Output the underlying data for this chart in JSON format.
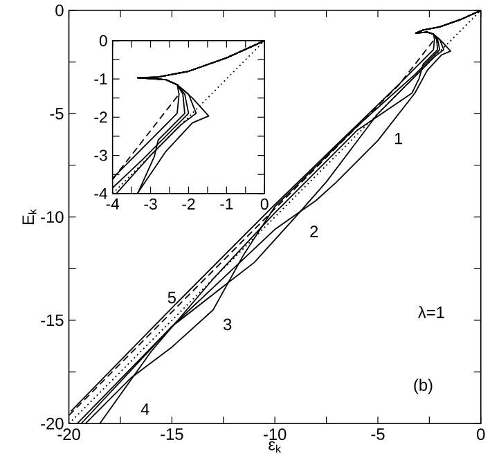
{
  "chart_data": [
    {
      "type": "line",
      "xlabel": "ε$_{k}$",
      "ylabel": "E$_{k}$",
      "xlim": [
        -20,
        0
      ],
      "ylim": [
        -20,
        0
      ],
      "xticks": [
        -20,
        {
          "value": -17.5,
          "label": null
        },
        -15,
        {
          "value": -12.5,
          "label": null
        },
        -10,
        {
          "value": -7.5,
          "label": null
        },
        -5,
        {
          "value": -2.5,
          "label": null
        },
        0
      ],
      "yticks": [
        -20,
        {
          "value": -17.5,
          "label": null
        },
        -15,
        {
          "value": -12.5,
          "label": null
        },
        -10,
        {
          "value": -7.5,
          "label": null
        },
        -5,
        {
          "value": -2.5,
          "label": null
        },
        0
      ],
      "series": [
        {
          "color": "#000000",
          "line_style": "dotted",
          "x": [
            -20,
            0
          ],
          "values": [
            -20,
            0
          ]
        },
        {
          "color": "#000000",
          "line_style": "dashed",
          "x": [
            -20,
            -10,
            -4,
            -2.26
          ],
          "values": [
            -19.6,
            -9.6,
            -3.63,
            -1.41
          ]
        },
        {
          "color": "#000000",
          "line_style": "solid",
          "x": [
            0,
            -1,
            -2,
            -2.8,
            -3.16,
            -2.6,
            -2.3,
            -1.9,
            -1.47,
            -1.9,
            -2.6,
            -3.2,
            -5,
            -7,
            -8,
            -10,
            -15,
            -19.6
          ],
          "values": [
            0,
            -0.45,
            -0.8,
            -0.95,
            -1.1,
            -1.05,
            -1.15,
            -1.5,
            -1.97,
            -2.15,
            -2.9,
            -4,
            -6.3,
            -8.3,
            -9.2,
            -10.6,
            -15.3,
            -20
          ]
        },
        {
          "color": "#000000",
          "line_style": "solid",
          "x": [
            0,
            -1,
            -2,
            -2.8,
            -3.16,
            -2.6,
            -2.3,
            -2,
            -1.8,
            -2.2,
            -3,
            -5,
            -7.5,
            -9,
            -11,
            -12.3,
            -15,
            -19.4
          ],
          "values": [
            0,
            -0.45,
            -0.8,
            -0.95,
            -1.1,
            -1.05,
            -1.15,
            -1.4,
            -1.9,
            -2.2,
            -3,
            -5,
            -8.3,
            -10,
            -12.2,
            -13.2,
            -15.3,
            -20
          ]
        },
        {
          "color": "#000000",
          "line_style": "solid",
          "x": [
            0,
            -1,
            -2,
            -2.8,
            -3.16,
            -2.6,
            -2.3,
            -2.1,
            -2,
            -2.3,
            -3.2,
            -6,
            -10,
            -11.5,
            -13,
            -15,
            -17,
            -19.2
          ],
          "values": [
            0,
            -0.45,
            -0.8,
            -0.95,
            -1.1,
            -1.05,
            -1.15,
            -1.4,
            -1.9,
            -2.2,
            -3.1,
            -5.6,
            -9.5,
            -11.8,
            -14.5,
            -16.3,
            -17.8,
            -20
          ]
        },
        {
          "color": "#000000",
          "line_style": "solid",
          "x": [
            0,
            -1,
            -2,
            -2.8,
            -3.16,
            -2.6,
            -2.3,
            -2.15,
            -2.1,
            -2.4,
            -2.8,
            -3,
            -3.34,
            -6,
            -10,
            -13,
            -16,
            -18.5
          ],
          "values": [
            0,
            -0.45,
            -0.8,
            -0.95,
            -1.1,
            -1.05,
            -1.15,
            -1.4,
            -1.9,
            -2.2,
            -2.6,
            -3.3,
            -4,
            -5.8,
            -9.8,
            -13,
            -16.5,
            -20
          ]
        },
        {
          "color": "#000000",
          "line_style": "solid",
          "x": [
            0,
            -1,
            -2,
            -2.8,
            -3.16,
            -2.6,
            -2.3,
            -2.25,
            -2.3,
            -2.6,
            -4,
            -10,
            -15,
            -19.9
          ],
          "values": [
            0,
            -0.45,
            -0.8,
            -0.95,
            -1.1,
            -1.05,
            -1.15,
            -1.4,
            -1.9,
            -2.2,
            -3.6,
            -9.4,
            -14.4,
            -19.4
          ]
        }
      ],
      "annotations": [
        "1",
        "2",
        "3",
        "4",
        "5",
        "λ=1",
        "(b)"
      ]
    },
    {
      "type": "line",
      "xlim": [
        -4,
        0
      ],
      "ylim": [
        -4,
        0
      ],
      "xticks": [
        -4,
        {
          "value": -3.5,
          "label": null
        },
        -3,
        {
          "value": -2.5,
          "label": null
        },
        -2,
        {
          "value": -1.5,
          "label": null
        },
        -1,
        {
          "value": -0.5,
          "label": null
        },
        0
      ],
      "yticks": [
        -4,
        {
          "value": -3.5,
          "label": null
        },
        -3,
        {
          "value": -2.5,
          "label": null
        },
        -2,
        {
          "value": -1.5,
          "label": null
        },
        -1,
        {
          "value": -0.5,
          "label": null
        },
        0
      ],
      "series": [
        {
          "color": "#000000",
          "line_style": "dotted",
          "x": [
            -4,
            0
          ],
          "values": [
            -4,
            0
          ]
        },
        {
          "color": "#000000",
          "line_style": "dashed",
          "x": [
            -4,
            -2.26
          ],
          "values": [
            -3.63,
            -1.41
          ]
        },
        {
          "color": "#000000",
          "line_style": "solid",
          "x": [
            0,
            -1,
            -2,
            -2.8,
            -3.34,
            -2.6,
            -2.3,
            -1.9,
            -1.47,
            -1.9,
            -2.6,
            -3.35
          ],
          "values": [
            0,
            -0.45,
            -0.8,
            -0.95,
            -0.97,
            -1.02,
            -1.15,
            -1.5,
            -1.97,
            -2.15,
            -2.9,
            -4
          ]
        },
        {
          "color": "#000000",
          "line_style": "solid",
          "x": [
            0,
            -1,
            -2,
            -2.8,
            -3.34,
            -2.6,
            -2.3,
            -2,
            -1.8,
            -2.2,
            -3,
            -3.9
          ],
          "values": [
            0,
            -0.45,
            -0.8,
            -0.95,
            -0.97,
            -1.02,
            -1.15,
            -1.4,
            -1.9,
            -2.2,
            -3,
            -4
          ]
        },
        {
          "color": "#000000",
          "line_style": "solid",
          "x": [
            0,
            -1,
            -2,
            -2.8,
            -3.34,
            -2.6,
            -2.3,
            -2.1,
            -2,
            -2.3,
            -3.2,
            -4
          ],
          "values": [
            0,
            -0.45,
            -0.8,
            -0.95,
            -0.97,
            -1.02,
            -1.15,
            -1.4,
            -1.9,
            -2.2,
            -3.1,
            -3.85
          ]
        },
        {
          "color": "#000000",
          "line_style": "solid",
          "x": [
            0,
            -1,
            -2,
            -2.8,
            -3.34,
            -2.6,
            -2.3,
            -2.15,
            -2.1,
            -2.4,
            -2.8,
            -2.9,
            -3.34
          ],
          "values": [
            0,
            -0.45,
            -0.8,
            -0.95,
            -0.97,
            -1.02,
            -1.15,
            -1.4,
            -1.9,
            -2.2,
            -2.6,
            -3.03,
            -4
          ]
        },
        {
          "color": "#000000",
          "line_style": "solid",
          "x": [
            0,
            -1,
            -2,
            -2.8,
            -3.34,
            -2.6,
            -2.3,
            -2.25,
            -2.3,
            -2.6,
            -4
          ],
          "values": [
            0,
            -0.45,
            -0.8,
            -0.95,
            -0.97,
            -1.02,
            -1.15,
            -1.4,
            -1.9,
            -2.2,
            -3.6
          ]
        }
      ]
    }
  ]
}
